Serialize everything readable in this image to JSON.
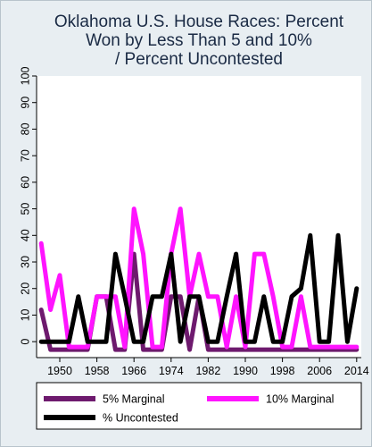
{
  "chart_data": {
    "type": "line",
    "title": [
      "Oklahoma U.S. House Races: Percent",
      "Won by Less Than 5 and 10%",
      "/ Percent Uncontested"
    ],
    "xlabel": "",
    "ylabel": "",
    "x": [
      1946,
      1948,
      1950,
      1952,
      1954,
      1956,
      1958,
      1960,
      1962,
      1964,
      1966,
      1968,
      1970,
      1972,
      1974,
      1976,
      1978,
      1980,
      1982,
      1984,
      1986,
      1988,
      1990,
      1992,
      1994,
      1996,
      1998,
      2000,
      2002,
      2004,
      2006,
      2008,
      2010,
      2012,
      2014
    ],
    "x_ticks": [
      "1950",
      "1958",
      "1966",
      "1974",
      "1982",
      "1990",
      "1998",
      "2006",
      "2014"
    ],
    "x_tick_values": [
      1950,
      1958,
      1966,
      1974,
      1982,
      1990,
      1998,
      2006,
      2014
    ],
    "xlim": [
      1945,
      2015
    ],
    "ylim": [
      -6,
      100
    ],
    "y_ticks": [
      "0",
      "10",
      "20",
      "30",
      "40",
      "50",
      "60",
      "70",
      "80",
      "90",
      "100"
    ],
    "y_tick_values": [
      0,
      10,
      20,
      30,
      40,
      50,
      60,
      70,
      80,
      90,
      100
    ],
    "grid": false,
    "legend_position": "bottom",
    "series": [
      {
        "name": "5% Marginal",
        "color": "#6e1a6e",
        "values": [
          12,
          -3,
          -3,
          -3,
          -3,
          -3,
          17,
          17,
          -3,
          -3,
          33,
          -3,
          -3,
          -3,
          17,
          17,
          -3,
          17,
          -3,
          -3,
          -3,
          -3,
          -3,
          -3,
          -3,
          -3,
          -3,
          -3,
          -3,
          -3,
          -3,
          -3,
          -3,
          -3,
          -3
        ]
      },
      {
        "name": "10% Marginal",
        "color": "#ff14ff",
        "values": [
          37,
          12,
          25,
          -2,
          -2,
          -2,
          17,
          17,
          17,
          -2,
          50,
          33,
          -2,
          -2,
          33,
          50,
          17,
          33,
          17,
          17,
          -2,
          17,
          -2,
          33,
          33,
          17,
          -2,
          -2,
          17,
          -2,
          -2,
          -2,
          -2,
          -2,
          -2
        ]
      },
      {
        "name": "% Uncontested",
        "color": "#000000",
        "values": [
          0,
          0,
          0,
          0,
          17,
          0,
          0,
          0,
          33,
          17,
          0,
          0,
          17,
          17,
          33,
          0,
          17,
          17,
          0,
          0,
          17,
          33,
          0,
          0,
          17,
          0,
          0,
          17,
          20,
          40,
          0,
          0,
          40,
          0,
          20
        ]
      }
    ]
  }
}
